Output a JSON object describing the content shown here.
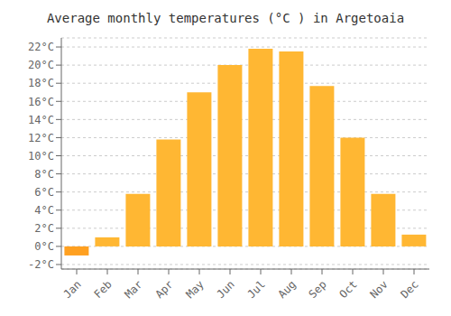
{
  "chart_data": {
    "type": "bar",
    "title": "Average monthly temperatures (°C ) in Argetoaia",
    "categories": [
      "Jan",
      "Feb",
      "Mar",
      "Apr",
      "May",
      "Jun",
      "Jul",
      "Aug",
      "Sep",
      "Oct",
      "Nov",
      "Dec"
    ],
    "values": [
      -1.0,
      1.0,
      5.8,
      11.8,
      17.0,
      20.0,
      21.8,
      21.5,
      17.7,
      12.0,
      5.8,
      1.3
    ],
    "colors": [
      "#FFA020",
      "#FFB733",
      "#FFB733",
      "#FFB733",
      "#FFB733",
      "#FFB733",
      "#FFB733",
      "#FFB733",
      "#FFB733",
      "#FFB733",
      "#FFB733",
      "#FFB733"
    ],
    "ylim": [
      -2.5,
      23
    ],
    "yticks": [
      {
        "value": -2,
        "label": "-2°C"
      },
      {
        "value": 0,
        "label": "0°C"
      },
      {
        "value": 2,
        "label": "2°C"
      },
      {
        "value": 4,
        "label": "4°C"
      },
      {
        "value": 6,
        "label": "6°C"
      },
      {
        "value": 8,
        "label": "8°C"
      },
      {
        "value": 10,
        "label": "10°C"
      },
      {
        "value": 12,
        "label": "12°C"
      },
      {
        "value": 14,
        "label": "14°C"
      },
      {
        "value": 16,
        "label": "16°C"
      },
      {
        "value": 18,
        "label": "18°C"
      },
      {
        "value": 20,
        "label": "20°C"
      },
      {
        "value": 22,
        "label": "22°C"
      }
    ],
    "grid": true
  }
}
